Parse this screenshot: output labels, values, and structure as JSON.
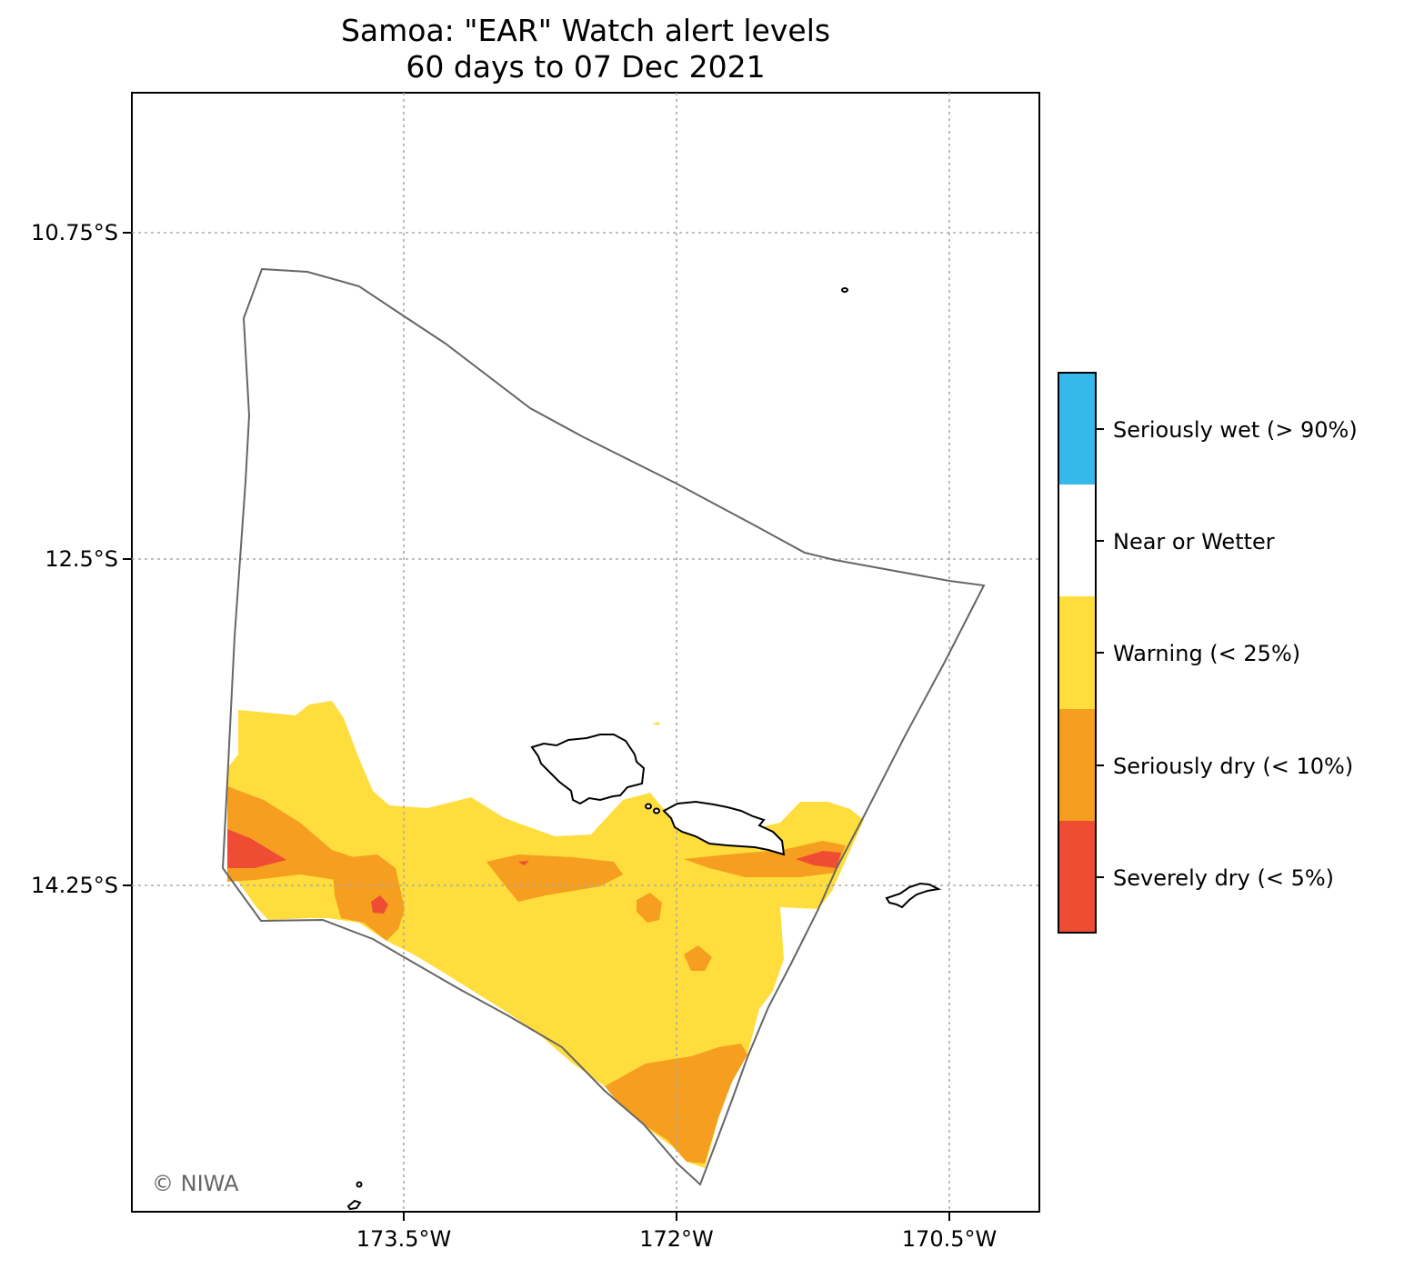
{
  "title": {
    "line1": "Samoa: \"EAR\" Watch alert levels",
    "line2": "60 days to 07 Dec 2021"
  },
  "axes": {
    "x_ticks": [
      "173.5°W",
      "172°W",
      "170.5°W"
    ],
    "y_ticks": [
      "10.75°S",
      "12.5°S",
      "14.25°S"
    ]
  },
  "legend": {
    "items": [
      {
        "label": "Seriously wet (> 90%)",
        "color": "#35b9ea"
      },
      {
        "label": "Near or Wetter",
        "color": "#ffffff"
      },
      {
        "label": "Warning (< 25%)",
        "color": "#ffdd3d"
      },
      {
        "label": "Seriously dry (< 10%)",
        "color": "#f69e1f"
      },
      {
        "label": "Severely dry (< 5%)",
        "color": "#ef4d33"
      }
    ]
  },
  "credit": "© NIWA",
  "colors": {
    "eez_boundary": "#666666",
    "gridline": "#aaaaaa",
    "coastline": "#000000"
  }
}
